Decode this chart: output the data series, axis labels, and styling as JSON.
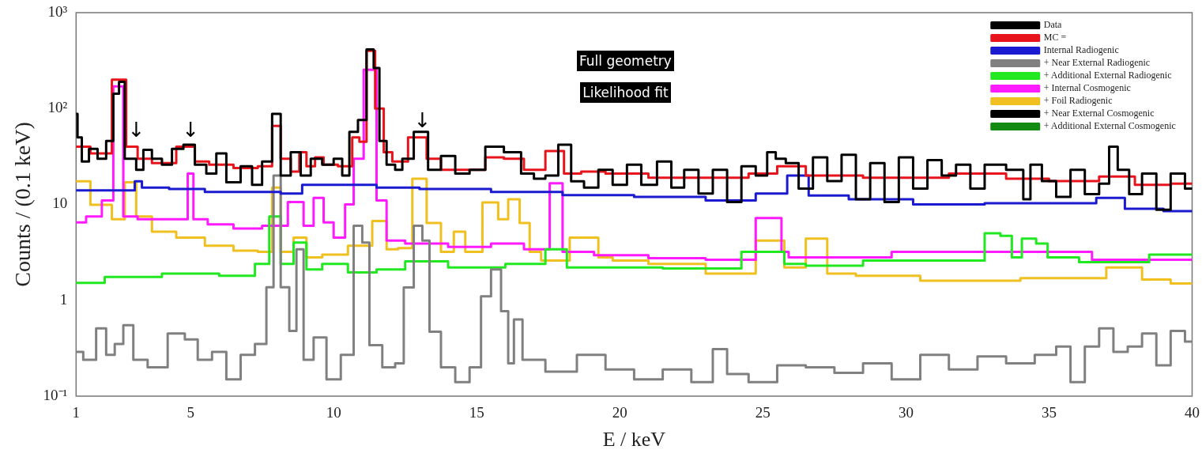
{
  "chart_data": {
    "type": "step",
    "xlabel": "E / keV",
    "ylabel": "Counts / (0.1 keV)",
    "log": "y",
    "xlim": [
      1,
      40
    ],
    "ylim": [
      0.1,
      1000
    ],
    "xticks": [
      1,
      5,
      10,
      15,
      20,
      25,
      30,
      35,
      40
    ],
    "yticks": [
      {
        "value": 0.1,
        "label": "10⁻¹"
      },
      1,
      10,
      {
        "value": 100,
        "label": "10²"
      },
      {
        "value": 1000,
        "label": "10³"
      }
    ],
    "grid": false,
    "legend": "top right",
    "marker": "none",
    "line_style": "solid",
    "annotations": [
      "Full geometry",
      "Likelihood fit",
      {
        "text": "↓",
        "x": 3.1,
        "y": 45
      },
      {
        "text": "↓",
        "x": 5,
        "y": 45
      },
      {
        "text": "↓",
        "x": 13.1,
        "y": 57
      }
    ],
    "series": [
      {
        "name": "Data",
        "color": "#000000",
        "x": [
          1,
          1.1,
          1.3,
          1.6,
          1.9,
          2.2,
          2.4,
          2.6,
          2.8,
          3.0,
          3.2,
          3.5,
          3.8,
          4.2,
          4.5,
          5.0,
          5.3,
          5.8,
          6.0,
          6.5,
          7,
          7.3,
          7.7,
          8.0,
          8.3,
          8.7,
          9.0,
          9.4,
          9.8,
          10.2,
          10.4,
          10.7,
          11.0,
          11.3,
          11.5,
          11.7,
          12,
          12.3,
          12.5,
          13.1,
          13.5,
          14,
          14.5,
          15,
          15.6,
          16.3,
          16.8,
          17.2,
          17.6,
          18.1,
          18.5,
          19,
          19.5,
          20,
          20.5,
          21,
          21.6,
          22,
          22.5,
          23,
          23.5,
          24,
          24.5,
          25,
          25.3,
          25.6,
          26,
          26.5,
          27,
          27.5,
          28,
          28.5,
          29,
          29.5,
          30,
          30.5,
          31,
          31.5,
          32,
          32.5,
          33,
          34,
          34.2,
          34.5,
          35,
          35.5,
          36,
          36.5,
          37,
          37.2,
          37.6,
          38,
          38.5,
          39,
          39.5,
          40
        ],
        "values": [
          88,
          50,
          28,
          38,
          30,
          46,
          143,
          190,
          30,
          30,
          23,
          37,
          30,
          26,
          38,
          42,
          26,
          21,
          34,
          17,
          25,
          16,
          28,
          88,
          20,
          35,
          20,
          30,
          26,
          30,
          20,
          57,
          76,
          413,
          265,
          46,
          26,
          23,
          30,
          57,
          23,
          32,
          21,
          23,
          40,
          35,
          21,
          18.5,
          20,
          42,
          17.4,
          15,
          23,
          16,
          26,
          16,
          28,
          15,
          23,
          13,
          23,
          10.6,
          25,
          20,
          35,
          30,
          27,
          14.6,
          31,
          17.5,
          33,
          11.3,
          27,
          10.6,
          31,
          14.6,
          29,
          20,
          26,
          14.6,
          26,
          23,
          11.3,
          26,
          17.5,
          12,
          23,
          12.8,
          16.5,
          40,
          23,
          12.8,
          21,
          8.8,
          21,
          14.6
        ]
      },
      {
        "name": "MC =",
        "color": "#e8141c",
        "x": [
          1,
          2,
          2.5,
          3,
          3.3,
          4,
          5,
          5.3,
          6,
          7,
          7.7,
          8,
          8.3,
          8.7,
          8.9,
          9.2,
          9.5,
          9.8,
          10.5,
          10.8,
          11.0,
          11.3,
          11.6,
          11.9,
          12.2,
          13,
          13.5,
          14,
          15,
          15.6,
          16.3,
          17,
          17.8,
          18.3,
          19,
          20,
          22,
          24,
          25,
          26,
          27,
          30,
          33,
          34,
          36,
          37.5,
          38.5,
          40
        ],
        "values": [
          40,
          34,
          200,
          40,
          30,
          27,
          40,
          28,
          26,
          24,
          25,
          66,
          30,
          22,
          35,
          25,
          31,
          26,
          25,
          50,
          45,
          400,
          100,
          35,
          28,
          50,
          30,
          23,
          23,
          31,
          30,
          23,
          36,
          21,
          22,
          21,
          19,
          19,
          21,
          25,
          20,
          19,
          21,
          18.5,
          17.5,
          19.5,
          16,
          16.5
        ]
      },
      {
        "name": "Internal Radiogenic",
        "color": "#1a1ad0",
        "x": [
          1,
          3,
          3.1,
          3.5,
          5,
          6,
          8,
          8.3,
          9.5,
          11,
          12,
          14,
          17,
          19,
          22,
          24,
          25.5,
          26.2,
          27,
          29,
          31.5,
          34,
          36,
          37.3,
          38,
          40
        ],
        "values": [
          14,
          14,
          17.4,
          15,
          14.5,
          13.5,
          13.5,
          13,
          16,
          16,
          15,
          14.5,
          13.5,
          12.5,
          12,
          11,
          13,
          20,
          12.4,
          11.3,
          10,
          10.3,
          10.3,
          11.7,
          9,
          8.5
        ]
      },
      {
        "name": "+ Near External Radiogenic",
        "color": "#808080",
        "x": [
          1,
          1.5,
          1.9,
          2.2,
          2.5,
          2.8,
          3.2,
          3.8,
          4.6,
          5,
          5.5,
          6,
          6.5,
          7,
          7.5,
          7.8,
          8.0,
          8.3,
          8.6,
          8.8,
          9.1,
          9.5,
          10,
          10.5,
          10.9,
          11.1,
          11.4,
          12,
          12.3,
          12.6,
          13,
          13.2,
          13.5,
          14,
          14.5,
          15,
          15.3,
          15.7,
          16,
          16.2,
          16.4,
          16.8,
          18,
          19,
          20,
          21,
          22,
          23,
          23.5,
          24,
          25,
          26,
          27,
          28,
          29,
          30,
          31,
          32,
          33,
          34,
          35,
          35.5,
          36,
          36.5,
          37,
          37.5,
          38,
          38.5,
          39,
          39.5,
          40
        ],
        "values": [
          0.29,
          0.24,
          0.51,
          0.27,
          0.35,
          0.55,
          0.24,
          0.2,
          0.45,
          0.39,
          0.24,
          0.29,
          0.15,
          0.27,
          0.35,
          1.37,
          20,
          1.37,
          0.48,
          3.4,
          0.24,
          0.41,
          0.15,
          0.27,
          6,
          4,
          0.34,
          0.2,
          0.22,
          1.36,
          6,
          4.2,
          0.47,
          0.2,
          0.14,
          0.2,
          1.1,
          2.1,
          0.77,
          0.22,
          0.63,
          0.24,
          0.18,
          0.27,
          0.19,
          0.15,
          0.19,
          0.14,
          0.31,
          0.17,
          0.14,
          0.21,
          0.2,
          0.175,
          0.22,
          0.15,
          0.27,
          0.19,
          0.26,
          0.22,
          0.27,
          0.33,
          0.14,
          0.33,
          0.51,
          0.29,
          0.33,
          0.45,
          0.21,
          0.48,
          0.37
        ]
      },
      {
        "name": "+ Additional External Radiogenic",
        "color": "#22e822",
        "x": [
          1,
          3,
          5,
          7,
          7.5,
          8,
          8.3,
          8.9,
          9.2,
          10,
          11,
          12,
          13,
          15,
          17,
          17.8,
          18.5,
          20,
          23,
          25.5,
          26,
          27,
          30,
          32.5,
          33,
          33.6,
          33.8,
          34.3,
          34.8,
          35.1,
          37,
          40
        ],
        "values": [
          1.52,
          1.75,
          1.9,
          1.8,
          2.4,
          7.5,
          2.4,
          4,
          2.1,
          2.4,
          1.95,
          2.1,
          2.55,
          2.2,
          2.4,
          3.4,
          2.2,
          2.2,
          2.15,
          3.2,
          2.4,
          2.3,
          2.6,
          2.6,
          5,
          4.7,
          2.8,
          4.4,
          3.9,
          2.8,
          2.5,
          3
        ]
      },
      {
        "name": "+ Internal Cosmogenic",
        "color": "#ff1aff",
        "x": [
          1,
          1.7,
          2.1,
          2.5,
          2.8,
          3.5,
          4.8,
          5.0,
          5.2,
          6,
          7,
          8,
          8.8,
          9.1,
          9.5,
          9.8,
          10.2,
          10.6,
          10.8,
          11.3,
          11.7,
          12,
          13,
          15,
          16,
          17.3,
          17.8,
          18.2,
          20,
          22,
          24,
          25.5,
          25.8,
          26,
          33,
          40
        ],
        "values": [
          6.5,
          7.5,
          11,
          170,
          7.5,
          7,
          7,
          21,
          7,
          6.2,
          5.6,
          6,
          10.6,
          6,
          11.7,
          6.5,
          4.5,
          10,
          30,
          253,
          11,
          4.2,
          3.9,
          3.6,
          3.9,
          3.4,
          16.6,
          3.2,
          2.95,
          2.75,
          2.65,
          7.2,
          3.2,
          2.8,
          3.2,
          2.65
        ]
      },
      {
        "name": "+ Foil Radiogenic",
        "color": "#f0c020",
        "x": [
          1,
          2,
          2.5,
          2.9,
          3.3,
          4,
          5,
          6,
          7,
          7.7,
          8.0,
          8.3,
          8.9,
          9.2,
          10,
          11,
          11.7,
          12,
          12.5,
          13,
          13.5,
          14,
          14.4,
          14.8,
          15.6,
          15.9,
          16.3,
          16.7,
          17.0,
          17.5,
          19,
          19.5,
          20,
          22,
          24,
          25.5,
          26,
          27,
          27.5,
          29,
          32,
          36,
          38,
          38.5,
          40
        ],
        "values": [
          17.4,
          9.9,
          7,
          17,
          7.5,
          5.2,
          4.5,
          3.7,
          3.3,
          3.2,
          15,
          3.2,
          4.5,
          2.8,
          3,
          3.7,
          6.7,
          3.4,
          3.5,
          18.5,
          6.4,
          3.2,
          5.2,
          3.2,
          10.5,
          7,
          11.3,
          6.4,
          3.2,
          2.6,
          4.5,
          2.8,
          2.6,
          2.4,
          1.9,
          4.2,
          2.2,
          4.4,
          1.9,
          1.8,
          1.6,
          1.7,
          2.2,
          1.65,
          1.5
        ]
      },
      {
        "name": "+ Near External Cosmogenic",
        "color": "#000000"
      },
      {
        "name": "+ Additional External Cosmogenic",
        "color": "#138a13"
      }
    ]
  }
}
